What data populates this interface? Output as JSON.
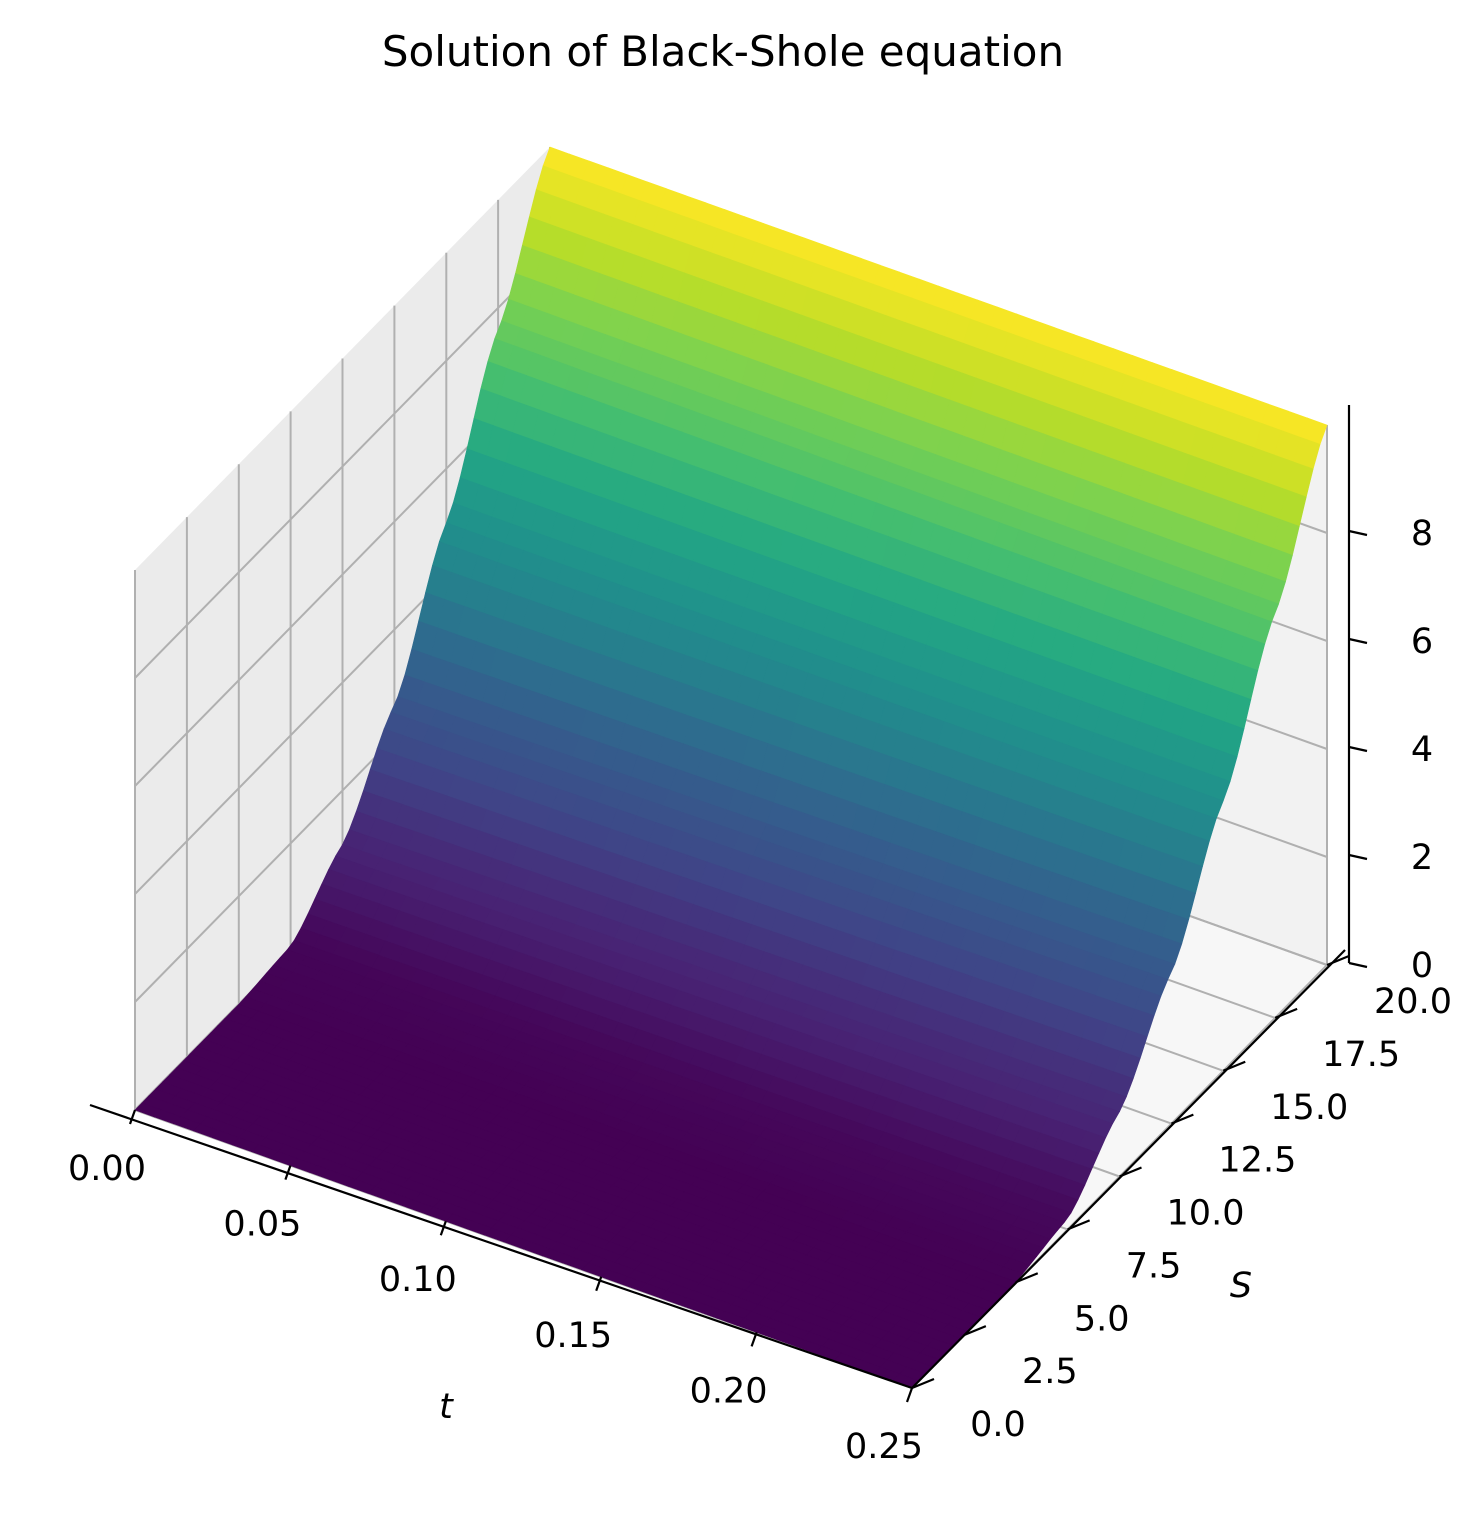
{
  "chart_data": {
    "type": "surface",
    "title": "Solution of Black-Shole equation",
    "xlabel": "t",
    "ylabel": "S",
    "zlabel": "",
    "colormap": "viridis",
    "xlim": [
      0,
      0.25
    ],
    "ylim": [
      0,
      20
    ],
    "zlim": [
      0,
      10
    ],
    "x_ticks": [
      "0.00",
      "0.05",
      "0.10",
      "0.15",
      "0.20",
      "0.25"
    ],
    "y_ticks": [
      "0.0",
      "2.5",
      "5.0",
      "7.5",
      "10.0",
      "12.5",
      "15.0",
      "17.5",
      "20.0"
    ],
    "z_ticks": [
      "0",
      "2",
      "4",
      "6",
      "8"
    ],
    "grid": true,
    "description_of_surface": {
      "t": [
        0.0,
        0.05,
        0.1,
        0.15,
        0.2,
        0.25
      ],
      "S": [
        0.0,
        2.5,
        5.0,
        7.5,
        10.0,
        12.5,
        15.0,
        17.5,
        20.0
      ],
      "V_at_t0": [
        0.0,
        0.0,
        0.0,
        0.1,
        1.0,
        2.6,
        5.0,
        7.6,
        10.0
      ],
      "V_at_t025": [
        0.0,
        0.0,
        0.01,
        0.2,
        1.2,
        2.8,
        5.0,
        7.5,
        10.0
      ]
    }
  },
  "colors": {
    "pane_back": "#f2f2f2",
    "pane_side": "#ebebeb",
    "pane_floor": "#f7f7f7",
    "grid": "#b0b0b0",
    "axis": "#000000"
  }
}
